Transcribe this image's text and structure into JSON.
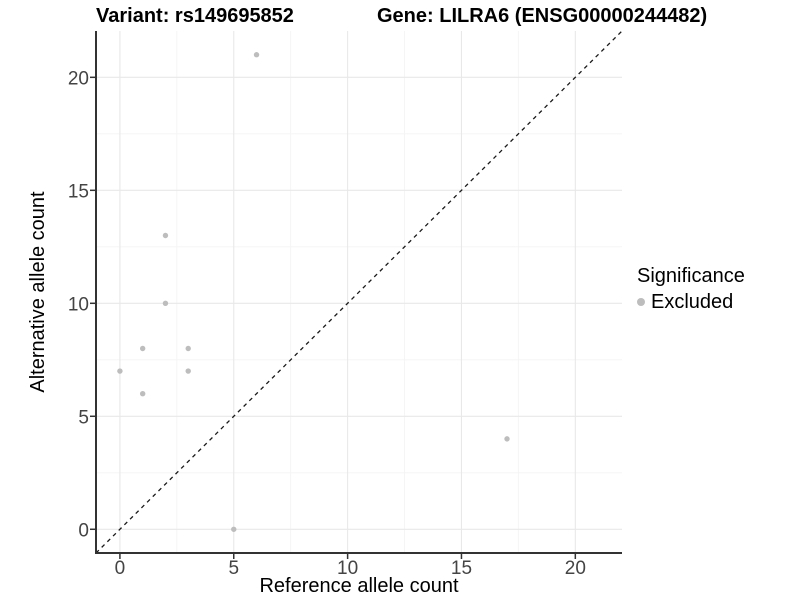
{
  "header": {
    "variant_title": "Variant: rs149695852",
    "gene_title": "Gene: LILRA6 (ENSG00000244482)"
  },
  "axes": {
    "x_label": "Reference allele count",
    "y_label": "Alternative allele count"
  },
  "legend": {
    "title": "Significance",
    "items": [
      {
        "label": "Excluded",
        "color": "#bdbdbd"
      }
    ]
  },
  "colors": {
    "background": "#ffffff",
    "point": "#bdbdbd",
    "grid_major": "#e8e8e8",
    "grid_minor": "#f4f4f4",
    "axis_line": "#333333",
    "tick_mark": "#333333",
    "tick_label": "#444444",
    "identity_line": "#1a1a1a"
  },
  "chart_data": {
    "type": "scatter",
    "title": "Variant: rs149695852 — Gene: LILRA6 (ENSG00000244482)",
    "xlabel": "Reference allele count",
    "ylabel": "Alternative allele count",
    "xlim": [
      -1.05,
      22.05
    ],
    "ylim": [
      -1.05,
      22.05
    ],
    "x_ticks": [
      0,
      5,
      10,
      15,
      20
    ],
    "y_ticks": [
      0,
      5,
      10,
      15,
      20
    ],
    "minor_ticks": [
      2.5,
      7.5,
      12.5,
      17.5
    ],
    "grid": true,
    "legend_position": "right",
    "identity_line": {
      "style": "dashed",
      "from": [
        -1.05,
        -1.05
      ],
      "to": [
        22.05,
        22.05
      ]
    },
    "series": [
      {
        "name": "Excluded",
        "color": "#bdbdbd",
        "points": [
          [
            0,
            7
          ],
          [
            1,
            6
          ],
          [
            1,
            8
          ],
          [
            2,
            10
          ],
          [
            2,
            13
          ],
          [
            3,
            7
          ],
          [
            3,
            8
          ],
          [
            5,
            0
          ],
          [
            6,
            21
          ],
          [
            17,
            4
          ]
        ]
      }
    ]
  }
}
